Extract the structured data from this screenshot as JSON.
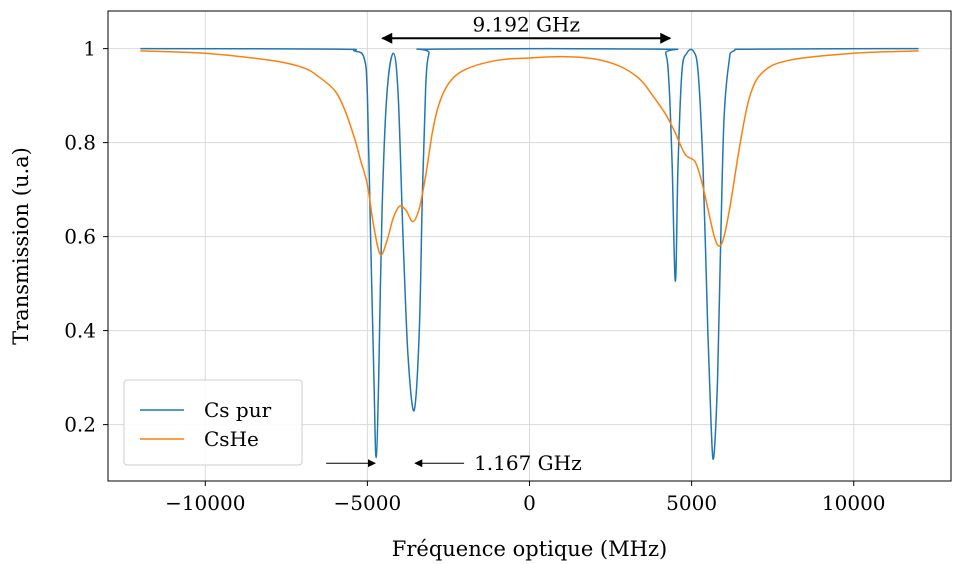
{
  "chart_data": {
    "type": "line",
    "title": "",
    "xlabel": "Fréquence optique (MHz)",
    "ylabel": "Transmission (u.a)",
    "xlim": [
      -13000,
      13000
    ],
    "ylim": [
      0.08,
      1.08
    ],
    "grid": true,
    "legend_position": "bottom-left",
    "x_ticks": [
      {
        "value": -10000,
        "label": "−10000"
      },
      {
        "value": -5000,
        "label": "−5000"
      },
      {
        "value": 0,
        "label": "0"
      },
      {
        "value": 5000,
        "label": "5000"
      },
      {
        "value": 10000,
        "label": "10000"
      }
    ],
    "y_ticks": [
      {
        "value": 0.2,
        "label": "0.2"
      },
      {
        "value": 0.4,
        "label": "0.4"
      },
      {
        "value": 0.6,
        "label": "0.6"
      },
      {
        "value": 0.8,
        "label": "0.8"
      },
      {
        "value": 1.0,
        "label": "1"
      }
    ],
    "series": [
      {
        "name": "Cs pur",
        "color": "#1f77b4",
        "points": [
          [
            -12000,
            1.0
          ],
          [
            -6000,
            0.999
          ],
          [
            -5400,
            0.995
          ],
          [
            -5100,
            0.98
          ],
          [
            -5000,
            0.9
          ],
          [
            -4900,
            0.6
          ],
          [
            -4800,
            0.3
          ],
          [
            -4730,
            0.13
          ],
          [
            -4650,
            0.3
          ],
          [
            -4550,
            0.65
          ],
          [
            -4400,
            0.9
          ],
          [
            -4200,
            0.99
          ],
          [
            -4050,
            0.9
          ],
          [
            -3900,
            0.6
          ],
          [
            -3750,
            0.35
          ],
          [
            -3560,
            0.23
          ],
          [
            -3400,
            0.4
          ],
          [
            -3300,
            0.7
          ],
          [
            -3200,
            0.92
          ],
          [
            -3100,
            0.99
          ],
          [
            -2900,
            0.999
          ],
          [
            4000,
            0.999
          ],
          [
            4200,
            0.99
          ],
          [
            4300,
            0.93
          ],
          [
            4400,
            0.75
          ],
          [
            4500,
            0.505
          ],
          [
            4580,
            0.75
          ],
          [
            4700,
            0.95
          ],
          [
            4850,
            0.99
          ],
          [
            5050,
            0.995
          ],
          [
            5200,
            0.95
          ],
          [
            5350,
            0.75
          ],
          [
            5500,
            0.4
          ],
          [
            5600,
            0.2
          ],
          [
            5680,
            0.13
          ],
          [
            5800,
            0.3
          ],
          [
            5900,
            0.6
          ],
          [
            6000,
            0.85
          ],
          [
            6150,
            0.97
          ],
          [
            6300,
            0.995
          ],
          [
            7000,
            0.999
          ],
          [
            12000,
            1.0
          ]
        ]
      },
      {
        "name": "CsHe",
        "color": "#ff7f0e",
        "points": [
          [
            -12000,
            0.995
          ],
          [
            -10000,
            0.99
          ],
          [
            -8000,
            0.975
          ],
          [
            -7000,
            0.96
          ],
          [
            -6500,
            0.94
          ],
          [
            -6000,
            0.91
          ],
          [
            -5700,
            0.87
          ],
          [
            -5400,
            0.81
          ],
          [
            -5200,
            0.76
          ],
          [
            -5000,
            0.71
          ],
          [
            -4800,
            0.62
          ],
          [
            -4600,
            0.562
          ],
          [
            -4400,
            0.59
          ],
          [
            -4200,
            0.64
          ],
          [
            -4000,
            0.665
          ],
          [
            -3800,
            0.655
          ],
          [
            -3600,
            0.632
          ],
          [
            -3400,
            0.66
          ],
          [
            -3200,
            0.73
          ],
          [
            -3000,
            0.82
          ],
          [
            -2800,
            0.88
          ],
          [
            -2500,
            0.925
          ],
          [
            -2000,
            0.955
          ],
          [
            -1000,
            0.975
          ],
          [
            0,
            0.98
          ],
          [
            1000,
            0.983
          ],
          [
            2000,
            0.978
          ],
          [
            2800,
            0.962
          ],
          [
            3400,
            0.935
          ],
          [
            3800,
            0.9
          ],
          [
            4200,
            0.86
          ],
          [
            4500,
            0.82
          ],
          [
            4800,
            0.775
          ],
          [
            5100,
            0.76
          ],
          [
            5300,
            0.72
          ],
          [
            5500,
            0.66
          ],
          [
            5700,
            0.6
          ],
          [
            5850,
            0.58
          ],
          [
            6000,
            0.6
          ],
          [
            6200,
            0.67
          ],
          [
            6500,
            0.8
          ],
          [
            6800,
            0.9
          ],
          [
            7200,
            0.95
          ],
          [
            8000,
            0.975
          ],
          [
            10000,
            0.99
          ],
          [
            12000,
            0.995
          ]
        ]
      }
    ],
    "annotations": [
      {
        "text": "9.192 GHz",
        "type": "double-arrow",
        "x_from": -4600,
        "x_to": 4400,
        "y": 1.022
      },
      {
        "text": "1.167 GHz",
        "type": "inward-arrows",
        "x_left": -4730,
        "x_right": -3560,
        "y": 0.12
      }
    ]
  }
}
